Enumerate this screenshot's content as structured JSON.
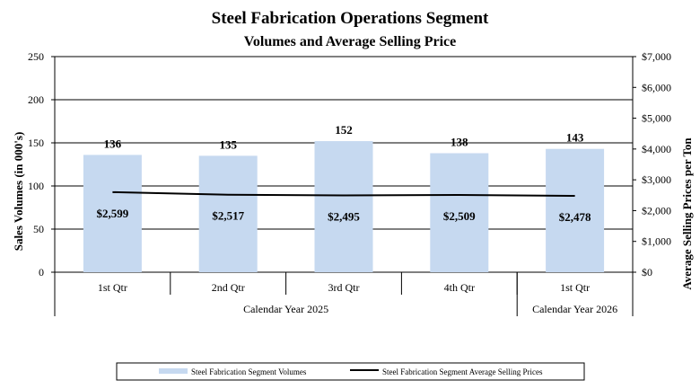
{
  "chart_data": {
    "type": "bar",
    "title": "Steel Fabrication Operations Segment",
    "subtitle": "Volumes and Average Selling Price",
    "ylabel": "Sales Volumes (in 000's)",
    "y2label": "Average Selling Prices per Ton",
    "ylim": [
      0,
      250
    ],
    "y2lim": [
      0,
      7000
    ],
    "yticks": [
      "0",
      "50",
      "100",
      "150",
      "200",
      "250"
    ],
    "y2ticks": [
      "$0",
      "$1,000",
      "$2,000",
      "$3,000",
      "$4,000",
      "$5,000",
      "$6,000",
      "$7,000"
    ],
    "grid": true,
    "categories": [
      "1st Qtr",
      "2nd Qtr",
      "3rd Qtr",
      "4th Qtr",
      "1st Qtr"
    ],
    "groups": [
      {
        "label": "Calendar Year 2025",
        "count": 4
      },
      {
        "label": "Calendar Year 2026",
        "count": 1
      }
    ],
    "series": [
      {
        "name": "Steel Fabrication Segment Volumes",
        "type": "bar",
        "axis": "left",
        "color": "#c6d9f0",
        "values": [
          136,
          135,
          152,
          138,
          143
        ],
        "labels": [
          "136",
          "135",
          "152",
          "138",
          "143"
        ]
      },
      {
        "name": "Steel Fabrication Segment Average Selling Prices",
        "type": "line",
        "axis": "right",
        "color": "#000000",
        "values": [
          2599,
          2517,
          2495,
          2509,
          2478
        ],
        "labels": [
          "$2,599",
          "$2,517",
          "$2,495",
          "$2,509",
          "$2,478"
        ]
      }
    ],
    "legend_position": "bottom"
  }
}
